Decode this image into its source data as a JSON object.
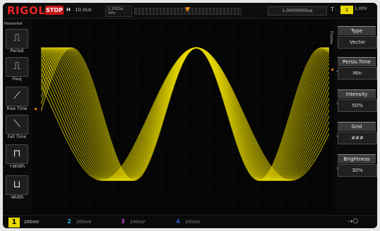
{
  "topbar": {
    "brand": "RIGOL",
    "status": "STOP",
    "h_label": "H",
    "h_value": "10.0us",
    "sample_rate_label": "1.25GSa",
    "memory_label": "5Pts",
    "trigger_info": "1.00000000us",
    "trigger_T": "T",
    "trigger_source": "1",
    "trigger_level": "1.00V"
  },
  "left_menu": {
    "title": "Horizontal",
    "items": [
      {
        "label": "Period",
        "icon": "period-icon"
      },
      {
        "label": "Freq",
        "icon": "frequency-icon"
      },
      {
        "label": "Rise Time",
        "icon": "rise-time-icon"
      },
      {
        "label": "Fall Time",
        "icon": "fall-time-icon"
      },
      {
        "label": "+Width",
        "icon": "positive-width-icon"
      },
      {
        "label": "-Width",
        "icon": "negative-width-icon"
      }
    ]
  },
  "display_label": "Display",
  "right_menu": {
    "items": [
      {
        "header": "Type",
        "value": "Vector"
      },
      {
        "header": "Persis.Time",
        "value": "Min"
      },
      {
        "header": "Intensity",
        "value": "50%"
      },
      {
        "header": "Grid",
        "value": "###"
      },
      {
        "header": "Brightness",
        "value": "30%"
      }
    ]
  },
  "bottombar": {
    "ch1": {
      "num": "1",
      "scale": "200mV"
    },
    "ch2": {
      "num": "2",
      "scale": "200mV"
    },
    "ch3": {
      "num": "3",
      "scale": "200mV"
    },
    "ch4": {
      "num": "4",
      "scale": "200mV"
    }
  },
  "colors": {
    "ch1": "#e8d800",
    "ch2": "#34b6e0",
    "ch3": "#c744d6",
    "ch4": "#2f62d8",
    "trigger": "#ff8a1e",
    "stop": "#c8151b"
  }
}
